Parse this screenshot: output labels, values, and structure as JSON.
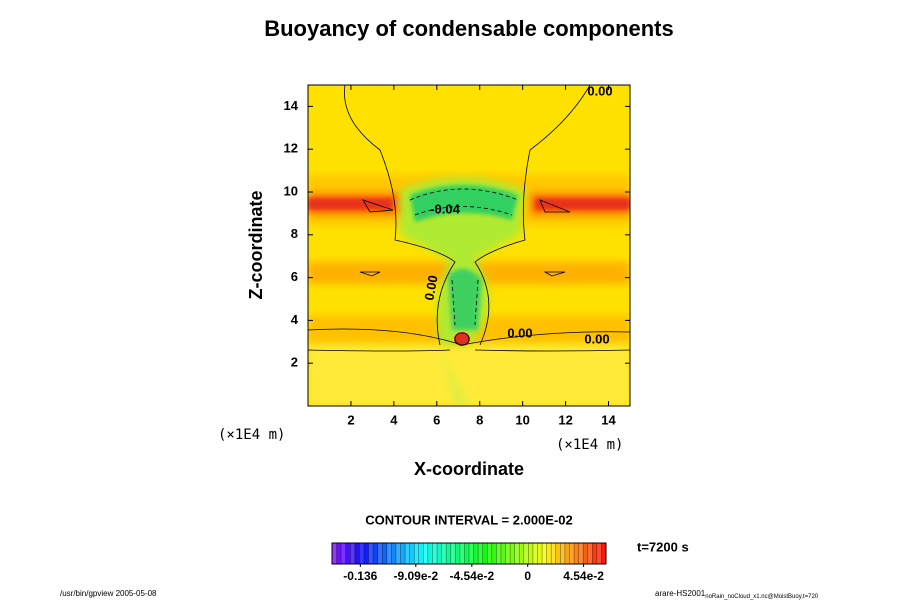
{
  "chart_data": {
    "type": "contour",
    "title": "Buoyancy of condensable components",
    "x_label": "X-coordinate",
    "y_label": "Z-coordinate",
    "x_unit": "(×1E4 m)",
    "y_unit": "(×1E4 m)",
    "xlim": [
      0,
      15
    ],
    "ylim": [
      0,
      15
    ],
    "xticks": [
      2,
      4,
      6,
      8,
      10,
      12,
      14
    ],
    "yticks": [
      2,
      4,
      6,
      8,
      10,
      12,
      14
    ],
    "contour_labels": [
      "0.00",
      "-0.04",
      "0.00",
      "0.00",
      "0.00"
    ],
    "contour_interval": "CONTOUR INTERVAL = 2.000E-02",
    "time": "t=7200 s",
    "colorbar": {
      "lim": [
        -0.159,
        0.0636
      ],
      "ticks": [
        {
          "value": -0.136,
          "label": "-0.136"
        },
        {
          "value": -0.0909,
          "label": "-9.09e-2"
        },
        {
          "value": -0.0454,
          "label": "-4.54e-2"
        },
        0,
        {
          "value": 0.0454,
          "label": "4.54e-2"
        }
      ]
    },
    "footer_left": "/usr/bin/gpview 2005-05-08",
    "footer_right": "arare-HS2001",
    "footer_right_sub": "noRain_noCloud_x1.nc@MoistBuoy,t=720"
  }
}
